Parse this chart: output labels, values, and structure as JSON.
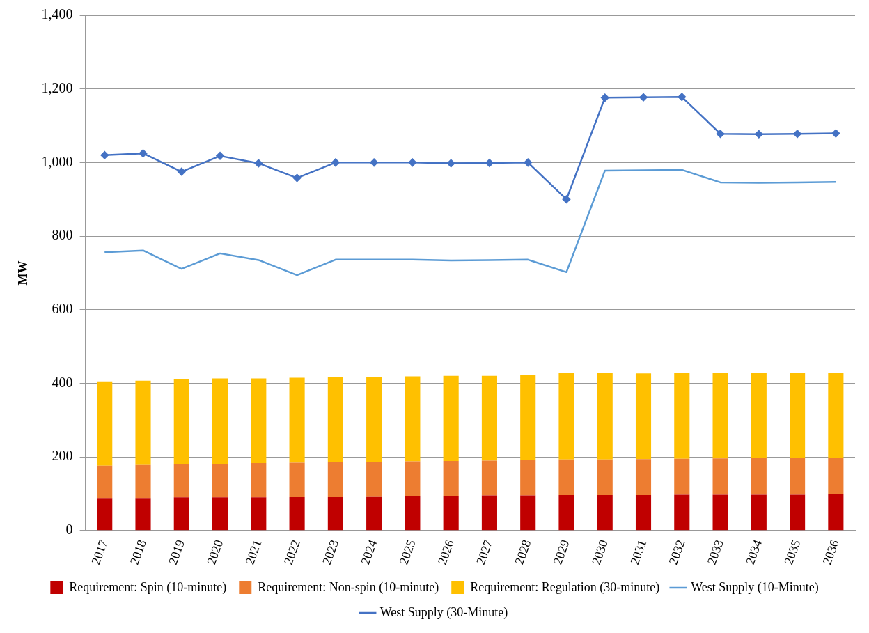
{
  "chart_data": {
    "type": "bar",
    "stacked": true,
    "ylabel": "MW",
    "ylim": [
      0,
      1400
    ],
    "yticks": [
      {
        "value": 0,
        "label": "0"
      },
      {
        "value": 200,
        "label": "200"
      },
      {
        "value": 400,
        "label": "400"
      },
      {
        "value": 600,
        "label": "600"
      },
      {
        "value": 800,
        "label": "800"
      },
      {
        "value": 1000,
        "label": "1,000"
      },
      {
        "value": 1200,
        "label": "1,200"
      },
      {
        "value": 1400,
        "label": "1,400"
      }
    ],
    "grid": "y",
    "legend": "bottom",
    "categories": [
      "2017",
      "2018",
      "2019",
      "2020",
      "2021",
      "2022",
      "2023",
      "2024",
      "2025",
      "2026",
      "2027",
      "2028",
      "2029",
      "2030",
      "2031",
      "2032",
      "2033",
      "2034",
      "2035",
      "2036"
    ],
    "series": [
      {
        "name": "Requirement: Spin (10-minute)",
        "color": "#c00000",
        "values": [
          88,
          88,
          90,
          90,
          90,
          92,
          92,
          93,
          94,
          94,
          95,
          95,
          96,
          96,
          96,
          97,
          97,
          97,
          97,
          98
        ]
      },
      {
        "name": "Requirement: Non-spin (10-minute)",
        "color": "#ed7d31",
        "values": [
          88,
          90,
          91,
          91,
          93,
          92,
          94,
          94,
          94,
          95,
          95,
          96,
          97,
          97,
          98,
          98,
          99,
          100,
          100,
          100
        ]
      },
      {
        "name": "Requirement: Regulation (30-minute)",
        "color": "#ffc000",
        "values": [
          229,
          229,
          231,
          232,
          230,
          231,
          230,
          230,
          231,
          231,
          230,
          231,
          235,
          235,
          233,
          234,
          232,
          231,
          231,
          231
        ]
      },
      {
        "name": "West Supply (10-Minute)",
        "type": "line",
        "marker": "none",
        "color": "#5b9bd5",
        "values": [
          756,
          761,
          711,
          753,
          735,
          694,
          736,
          736,
          736,
          734,
          735,
          736,
          702,
          978,
          979,
          980,
          946,
          945,
          946,
          947
        ]
      },
      {
        "name": "West Supply (30-Minute)",
        "type": "line",
        "marker": "diamond",
        "color": "#4472c4",
        "values": [
          1020,
          1025,
          975,
          1018,
          998,
          958,
          1000,
          1000,
          1000,
          998,
          999,
          1000,
          900,
          1176,
          1177,
          1178,
          1078,
          1077,
          1078,
          1079
        ]
      }
    ]
  }
}
